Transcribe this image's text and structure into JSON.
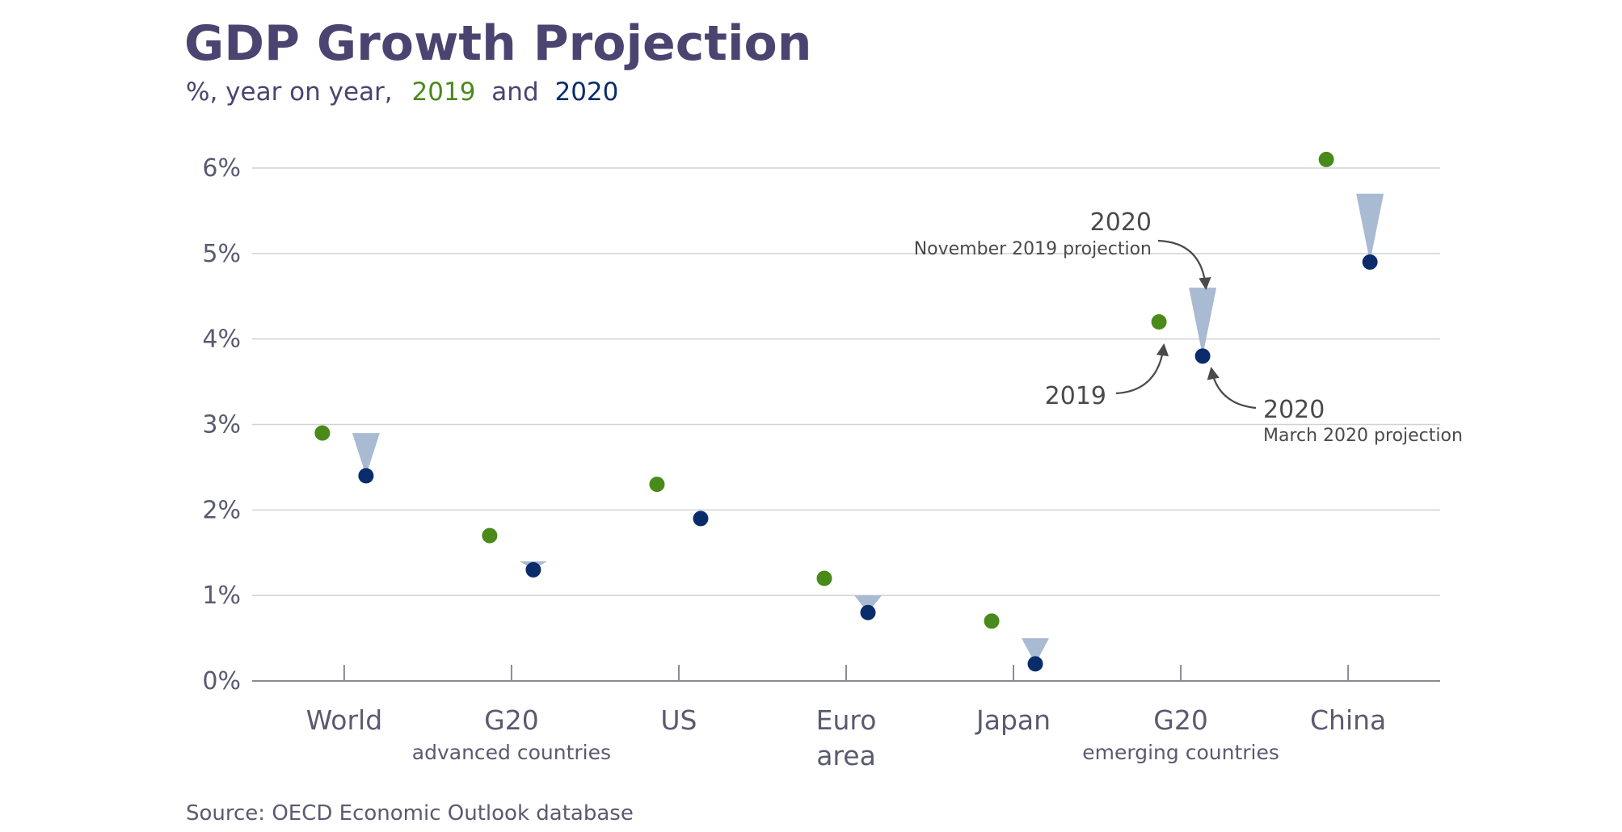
{
  "chart_data": {
    "type": "scatter",
    "title": "GDP Growth Projection",
    "subtitle": {
      "prefix": "%, year on year,",
      "series_a": "2019",
      "joiner": "and",
      "series_b": "2020"
    },
    "source": "Source: OECD Economic Outlook database",
    "ylim": [
      0,
      6
    ],
    "yticks": [
      "0%",
      "1%",
      "2%",
      "3%",
      "4%",
      "5%",
      "6%"
    ],
    "grid": true,
    "categories": [
      {
        "label": "World",
        "sublabel": ""
      },
      {
        "label": "G20",
        "sublabel": "advanced countries"
      },
      {
        "label": "US",
        "sublabel": ""
      },
      {
        "label": "Euro area",
        "sublabel": ""
      },
      {
        "label": "Japan",
        "sublabel": ""
      },
      {
        "label": "G20",
        "sublabel": "emerging countries"
      },
      {
        "label": "China",
        "sublabel": ""
      }
    ],
    "series": [
      {
        "values": [
          2.9,
          1.7,
          2.3,
          1.2,
          0.7,
          4.2,
          6.1
        ],
        "color": "#4a8a1a"
      },
      {
        "values": [
          2.4,
          1.3,
          1.9,
          0.8,
          0.2,
          3.8,
          4.9
        ],
        "color": "#0b2c6b"
      }
    ],
    "november_2019_projection_2020": [
      2.9,
      1.4,
      1.9,
      1.0,
      0.5,
      4.6,
      5.7
    ],
    "downgrade_color": "#a9bad3",
    "annotations": {
      "nov_year": "2020",
      "nov_label": "November 2019 projection",
      "year_2019": "2019",
      "mar_year": "2020",
      "mar_label": "March 2020 projection"
    }
  },
  "colors": {
    "title": "#4b4470",
    "axis_text": "#5a5a70",
    "grid": "#cfd2d8",
    "annotation_text": "#4a4a4a"
  }
}
